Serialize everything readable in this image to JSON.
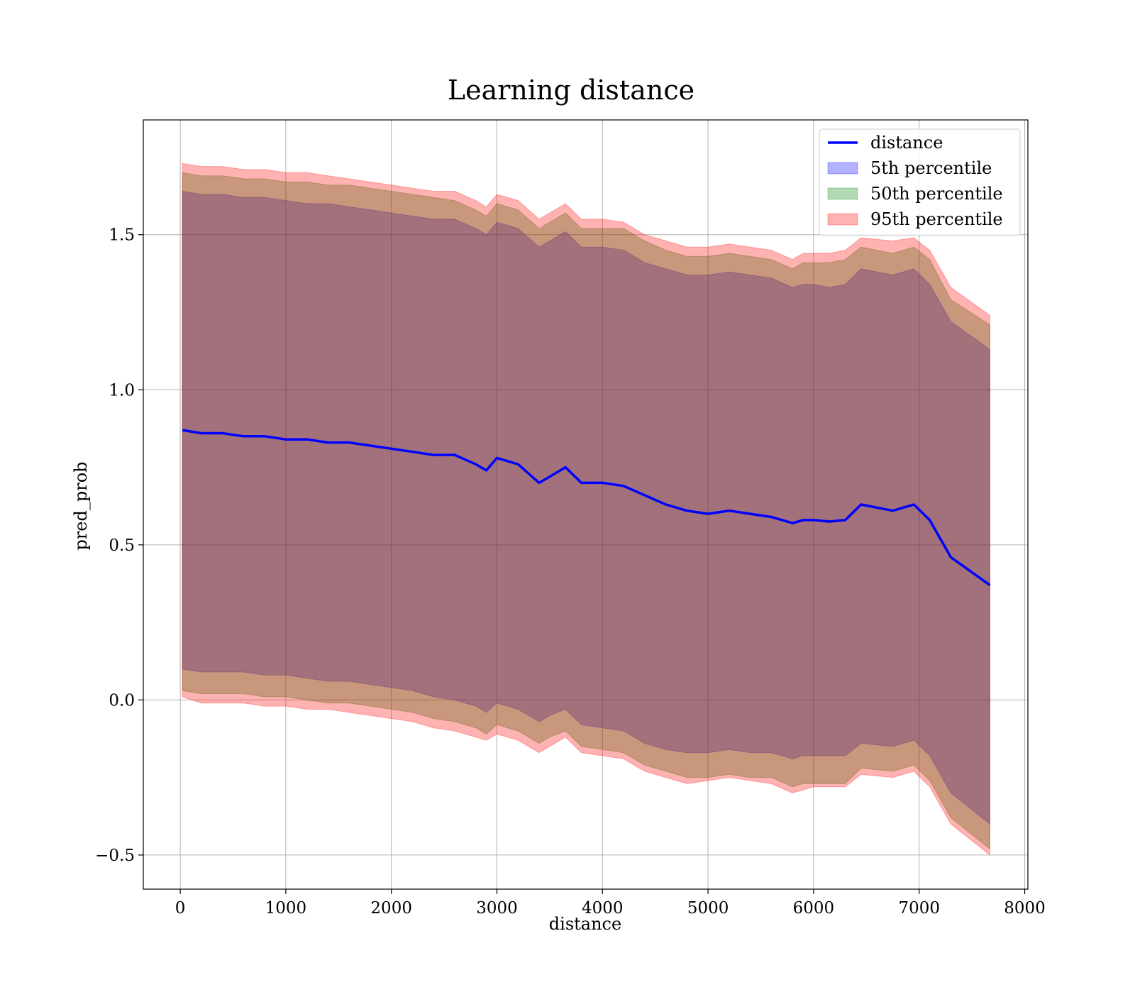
{
  "chart_data": {
    "type": "area",
    "title": "Learning distance",
    "xlabel": "distance",
    "ylabel": "pred_prob",
    "xlim": [
      -350,
      8030
    ],
    "ylim": [
      -0.61,
      1.87
    ],
    "x_ticks": [
      0,
      1000,
      2000,
      3000,
      4000,
      5000,
      6000,
      7000,
      8000
    ],
    "x_tick_labels": [
      "0",
      "1000",
      "2000",
      "3000",
      "4000",
      "5000",
      "6000",
      "7000",
      "8000"
    ],
    "y_ticks": [
      -0.5,
      0.0,
      0.5,
      1.0,
      1.5
    ],
    "y_tick_labels": [
      "−0.5",
      "0.0",
      "0.5",
      "1.0",
      "1.5"
    ],
    "grid": true,
    "legend": {
      "placement": "top-right",
      "entries": [
        "distance",
        "5th percentile",
        "50th percentile",
        "95th percentile"
      ]
    },
    "x": [
      20,
      200,
      400,
      600,
      800,
      1000,
      1200,
      1400,
      1600,
      1800,
      2000,
      2200,
      2400,
      2600,
      2800,
      2900,
      3000,
      3200,
      3400,
      3500,
      3650,
      3800,
      4000,
      4200,
      4400,
      4600,
      4800,
      5000,
      5200,
      5400,
      5600,
      5800,
      5900,
      6000,
      6150,
      6300,
      6450,
      6750,
      6950,
      7100,
      7300,
      7670
    ],
    "series": [
      {
        "name": "distance",
        "kind": "line",
        "color": "#0000ff",
        "values": [
          0.87,
          0.86,
          0.86,
          0.85,
          0.85,
          0.84,
          0.84,
          0.83,
          0.83,
          0.82,
          0.81,
          0.8,
          0.79,
          0.79,
          0.76,
          0.74,
          0.78,
          0.76,
          0.7,
          0.72,
          0.75,
          0.7,
          0.7,
          0.69,
          0.66,
          0.63,
          0.61,
          0.6,
          0.61,
          0.6,
          0.59,
          0.57,
          0.58,
          0.58,
          0.575,
          0.58,
          0.63,
          0.61,
          0.63,
          0.58,
          0.46,
          0.37
        ]
      },
      {
        "name": "5th percentile",
        "kind": "band",
        "color": "#0000ff",
        "lower": [
          0.1,
          0.09,
          0.09,
          0.09,
          0.08,
          0.08,
          0.07,
          0.06,
          0.06,
          0.05,
          0.04,
          0.03,
          0.01,
          0.0,
          -0.02,
          -0.04,
          -0.01,
          -0.03,
          -0.07,
          -0.05,
          -0.03,
          -0.08,
          -0.09,
          -0.1,
          -0.14,
          -0.16,
          -0.17,
          -0.17,
          -0.16,
          -0.17,
          -0.17,
          -0.19,
          -0.18,
          -0.18,
          -0.18,
          -0.18,
          -0.14,
          -0.15,
          -0.13,
          -0.18,
          -0.3,
          -0.4
        ],
        "upper": [
          1.64,
          1.63,
          1.63,
          1.62,
          1.62,
          1.61,
          1.6,
          1.6,
          1.59,
          1.58,
          1.57,
          1.56,
          1.55,
          1.55,
          1.52,
          1.5,
          1.54,
          1.52,
          1.46,
          1.48,
          1.51,
          1.46,
          1.46,
          1.45,
          1.41,
          1.39,
          1.37,
          1.37,
          1.38,
          1.37,
          1.36,
          1.33,
          1.34,
          1.34,
          1.33,
          1.34,
          1.39,
          1.37,
          1.39,
          1.34,
          1.22,
          1.13
        ]
      },
      {
        "name": "50th percentile",
        "kind": "band",
        "color": "#008000",
        "lower": [
          0.03,
          0.02,
          0.02,
          0.02,
          0.01,
          0.01,
          0.0,
          -0.01,
          -0.01,
          -0.02,
          -0.03,
          -0.04,
          -0.06,
          -0.07,
          -0.09,
          -0.11,
          -0.08,
          -0.1,
          -0.14,
          -0.12,
          -0.1,
          -0.15,
          -0.16,
          -0.17,
          -0.21,
          -0.23,
          -0.25,
          -0.25,
          -0.24,
          -0.25,
          -0.25,
          -0.28,
          -0.27,
          -0.27,
          -0.27,
          -0.27,
          -0.22,
          -0.23,
          -0.21,
          -0.26,
          -0.38,
          -0.48
        ],
        "upper": [
          1.7,
          1.69,
          1.69,
          1.68,
          1.68,
          1.67,
          1.67,
          1.66,
          1.66,
          1.65,
          1.64,
          1.63,
          1.62,
          1.61,
          1.58,
          1.56,
          1.6,
          1.58,
          1.52,
          1.54,
          1.57,
          1.52,
          1.52,
          1.52,
          1.48,
          1.45,
          1.43,
          1.43,
          1.44,
          1.43,
          1.42,
          1.39,
          1.41,
          1.41,
          1.41,
          1.42,
          1.46,
          1.44,
          1.46,
          1.42,
          1.29,
          1.21
        ]
      },
      {
        "name": "95th percentile",
        "kind": "band",
        "color": "#ff0000",
        "lower": [
          0.01,
          -0.01,
          -0.01,
          -0.01,
          -0.02,
          -0.02,
          -0.03,
          -0.03,
          -0.04,
          -0.05,
          -0.06,
          -0.07,
          -0.09,
          -0.1,
          -0.12,
          -0.13,
          -0.11,
          -0.13,
          -0.17,
          -0.15,
          -0.12,
          -0.17,
          -0.18,
          -0.19,
          -0.23,
          -0.25,
          -0.27,
          -0.26,
          -0.25,
          -0.26,
          -0.27,
          -0.3,
          -0.29,
          -0.28,
          -0.28,
          -0.28,
          -0.24,
          -0.25,
          -0.23,
          -0.28,
          -0.4,
          -0.5
        ],
        "upper": [
          1.73,
          1.72,
          1.72,
          1.71,
          1.71,
          1.7,
          1.7,
          1.69,
          1.68,
          1.67,
          1.66,
          1.65,
          1.64,
          1.64,
          1.61,
          1.59,
          1.63,
          1.61,
          1.55,
          1.57,
          1.6,
          1.55,
          1.55,
          1.54,
          1.5,
          1.48,
          1.46,
          1.46,
          1.47,
          1.46,
          1.45,
          1.42,
          1.44,
          1.44,
          1.44,
          1.45,
          1.49,
          1.48,
          1.49,
          1.45,
          1.33,
          1.24
        ]
      }
    ]
  }
}
